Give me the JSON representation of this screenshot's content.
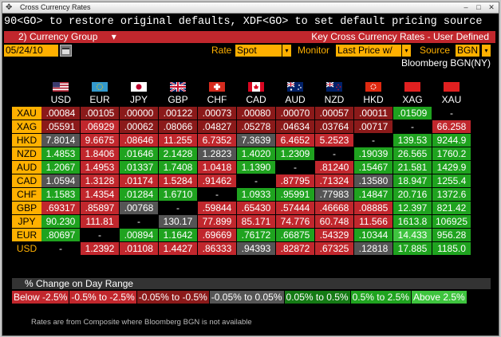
{
  "window": {
    "title": "Cross Currency Rates"
  },
  "command_line": "90<GO> to restore original defaults, XDF<GO> to set default pricing source",
  "group_bar": {
    "selector": "2)  Currency Group",
    "caret": "▾",
    "title": "Key Cross Currency Rates - User Defined"
  },
  "controls": {
    "date": "05/24/10",
    "rate_label": "Rate",
    "rate_value": "Spot",
    "monitor_label": "Monitor",
    "monitor_value": "Last Price w/",
    "source_label": "Source",
    "source_value": "BGN",
    "dropdown_glyph": "▾",
    "source_caption": "Bloomberg BGN(NY)"
  },
  "columns": [
    {
      "code": "USD",
      "flag": "us-flag-icon"
    },
    {
      "code": "EUR",
      "flag": "eu-flag-icon"
    },
    {
      "code": "JPY",
      "flag": "jp-flag-icon"
    },
    {
      "code": "GBP",
      "flag": "gb-flag-icon"
    },
    {
      "code": "CHF",
      "flag": "ch-flag-icon"
    },
    {
      "code": "CAD",
      "flag": "ca-flag-icon"
    },
    {
      "code": "AUD",
      "flag": "au-flag-icon"
    },
    {
      "code": "NZD",
      "flag": "nz-flag-icon"
    },
    {
      "code": "HKD",
      "flag": "hk-flag-icon"
    },
    {
      "code": "XAG",
      "flag": "red-swatch-icon"
    },
    {
      "code": "XAU",
      "flag": "red-swatch-icon"
    }
  ],
  "rows": [
    {
      "label": "XAU",
      "cells": [
        {
          "v": ".00084",
          "c": "dr"
        },
        {
          "v": ".00105",
          "c": "dr"
        },
        {
          "v": ".00000",
          "c": "dr"
        },
        {
          "v": ".00122",
          "c": "dr"
        },
        {
          "v": ".00073",
          "c": "dr"
        },
        {
          "v": ".00080",
          "c": "dr"
        },
        {
          "v": ".00070",
          "c": "dr"
        },
        {
          "v": ".00057",
          "c": "dr"
        },
        {
          "v": ".00011",
          "c": "dr"
        },
        {
          "v": ".01509",
          "c": "g"
        },
        {
          "v": "-",
          "c": "bl"
        }
      ]
    },
    {
      "label": "XAG",
      "cells": [
        {
          "v": ".05591",
          "c": "dr"
        },
        {
          "v": ".06929",
          "c": "r"
        },
        {
          "v": ".00062",
          "c": "dr"
        },
        {
          "v": ".08066",
          "c": "dr"
        },
        {
          "v": ".04827",
          "c": "dr"
        },
        {
          "v": ".05278",
          "c": "dr"
        },
        {
          "v": ".04634",
          "c": "dr"
        },
        {
          "v": ".03764",
          "c": "dr"
        },
        {
          "v": ".00717",
          "c": "dr"
        },
        {
          "v": "-",
          "c": "bl"
        },
        {
          "v": "66.258",
          "c": "r"
        }
      ]
    },
    {
      "label": "HKD",
      "cells": [
        {
          "v": "7.8014",
          "c": "gy"
        },
        {
          "v": "9.6675",
          "c": "r"
        },
        {
          "v": ".08646",
          "c": "r"
        },
        {
          "v": "11.255",
          "c": "r"
        },
        {
          "v": "6.7352",
          "c": "r"
        },
        {
          "v": "7.3639",
          "c": "gy"
        },
        {
          "v": "6.4652",
          "c": "r"
        },
        {
          "v": "5.2523",
          "c": "r"
        },
        {
          "v": "-",
          "c": "bl"
        },
        {
          "v": "139.53",
          "c": "g"
        },
        {
          "v": "9244.9",
          "c": "g"
        }
      ]
    },
    {
      "label": "NZD",
      "cells": [
        {
          "v": "1.4853",
          "c": "g"
        },
        {
          "v": "1.8406",
          "c": "r"
        },
        {
          "v": ".01646",
          "c": "g"
        },
        {
          "v": "2.1428",
          "c": "g"
        },
        {
          "v": "1.2823",
          "c": "gy"
        },
        {
          "v": "1.4020",
          "c": "g"
        },
        {
          "v": "1.2309",
          "c": "g"
        },
        {
          "v": "-",
          "c": "bl"
        },
        {
          "v": ".19039",
          "c": "g"
        },
        {
          "v": "26.565",
          "c": "g"
        },
        {
          "v": "1760.2",
          "c": "g"
        }
      ]
    },
    {
      "label": "AUD",
      "cells": [
        {
          "v": "1.2067",
          "c": "g"
        },
        {
          "v": "1.4953",
          "c": "r"
        },
        {
          "v": ".01337",
          "c": "g"
        },
        {
          "v": "1.7408",
          "c": "g"
        },
        {
          "v": "1.0418",
          "c": "r"
        },
        {
          "v": "1.1390",
          "c": "g"
        },
        {
          "v": "-",
          "c": "bl"
        },
        {
          "v": ".81240",
          "c": "r"
        },
        {
          "v": ".15467",
          "c": "g"
        },
        {
          "v": "21.581",
          "c": "g"
        },
        {
          "v": "1429.9",
          "c": "g"
        }
      ]
    },
    {
      "label": "CAD",
      "cells": [
        {
          "v": "1.0594",
          "c": "gy"
        },
        {
          "v": "1.3128",
          "c": "r"
        },
        {
          "v": ".01174",
          "c": "r"
        },
        {
          "v": "1.5284",
          "c": "r"
        },
        {
          "v": ".91462",
          "c": "r"
        },
        {
          "v": "-",
          "c": "bl"
        },
        {
          "v": ".87795",
          "c": "r"
        },
        {
          "v": ".71324",
          "c": "r"
        },
        {
          "v": ".13580",
          "c": "gy"
        },
        {
          "v": "18.947",
          "c": "g"
        },
        {
          "v": "1255.4",
          "c": "g"
        }
      ]
    },
    {
      "label": "CHF",
      "cells": [
        {
          "v": "1.1583",
          "c": "g"
        },
        {
          "v": "1.4354",
          "c": "r"
        },
        {
          "v": ".01284",
          "c": "g"
        },
        {
          "v": "1.6710",
          "c": "g"
        },
        {
          "v": "-",
          "c": "bl"
        },
        {
          "v": "1.0933",
          "c": "g"
        },
        {
          "v": ".95991",
          "c": "g"
        },
        {
          "v": ".77983",
          "c": "gy"
        },
        {
          "v": ".14847",
          "c": "g"
        },
        {
          "v": "20.716",
          "c": "g"
        },
        {
          "v": "1372.6",
          "c": "g"
        }
      ]
    },
    {
      "label": "GBP",
      "cells": [
        {
          "v": ".69317",
          "c": "r"
        },
        {
          "v": ".85897",
          "c": "r"
        },
        {
          "v": ".00768",
          "c": "gy"
        },
        {
          "v": "-",
          "c": "bl"
        },
        {
          "v": ".59844",
          "c": "r"
        },
        {
          "v": ".65430",
          "c": "r"
        },
        {
          "v": ".57444",
          "c": "r"
        },
        {
          "v": ".46668",
          "c": "r"
        },
        {
          "v": ".08885",
          "c": "r"
        },
        {
          "v": "12.397",
          "c": "g"
        },
        {
          "v": "821.42",
          "c": "g"
        }
      ]
    },
    {
      "label": "JPY",
      "cells": [
        {
          "v": "90.230",
          "c": "g"
        },
        {
          "v": "111.81",
          "c": "r"
        },
        {
          "v": "-",
          "c": "bl"
        },
        {
          "v": "130.17",
          "c": "gy"
        },
        {
          "v": "77.899",
          "c": "r"
        },
        {
          "v": "85.171",
          "c": "r"
        },
        {
          "v": "74.776",
          "c": "r"
        },
        {
          "v": "60.748",
          "c": "r"
        },
        {
          "v": "11.566",
          "c": "r"
        },
        {
          "v": "1613.8",
          "c": "g"
        },
        {
          "v": "106925",
          "c": "g"
        }
      ]
    },
    {
      "label": "EUR",
      "cells": [
        {
          "v": ".80697",
          "c": "g"
        },
        {
          "v": "-",
          "c": "bl"
        },
        {
          "v": ".00894",
          "c": "g"
        },
        {
          "v": "1.1642",
          "c": "g"
        },
        {
          "v": ".69669",
          "c": "r"
        },
        {
          "v": ".76172",
          "c": "g"
        },
        {
          "v": ".66875",
          "c": "g"
        },
        {
          "v": ".54329",
          "c": "r"
        },
        {
          "v": ".10344",
          "c": "g"
        },
        {
          "v": "14.433",
          "c": "lg"
        },
        {
          "v": "956.28",
          "c": "g"
        }
      ]
    },
    {
      "label": "USD",
      "cells": [
        {
          "v": "-",
          "c": "bl"
        },
        {
          "v": "1.2392",
          "c": "r"
        },
        {
          "v": ".01108",
          "c": "r"
        },
        {
          "v": "1.4427",
          "c": "r"
        },
        {
          "v": ".86333",
          "c": "r"
        },
        {
          "v": ".94393",
          "c": "gy"
        },
        {
          "v": ".82872",
          "c": "r"
        },
        {
          "v": ".67325",
          "c": "r"
        },
        {
          "v": ".12818",
          "c": "gy"
        },
        {
          "v": "17.885",
          "c": "g"
        },
        {
          "v": "1185.0",
          "c": "g"
        }
      ]
    }
  ],
  "range": {
    "title": "% Change on Day Range",
    "items": [
      {
        "label": "Below -2.5%",
        "color": "#c1272d"
      },
      {
        "label": "-0.5% to -2.5%",
        "color": "#c1272d"
      },
      {
        "label": "-0.05% to -0.5%",
        "color": "#8b1a1a"
      },
      {
        "label": "-0.05% to 0.05%",
        "color": "#555555"
      },
      {
        "label": "0.05% to 0.5%",
        "color": "#157a15"
      },
      {
        "label": "0.5% to 2.5%",
        "color": "#1fa31f"
      },
      {
        "label": "Above 2.5%",
        "color": "#3ec43e"
      }
    ]
  },
  "footnote": "Rates are from Composite where Bloomberg BGN is not available"
}
